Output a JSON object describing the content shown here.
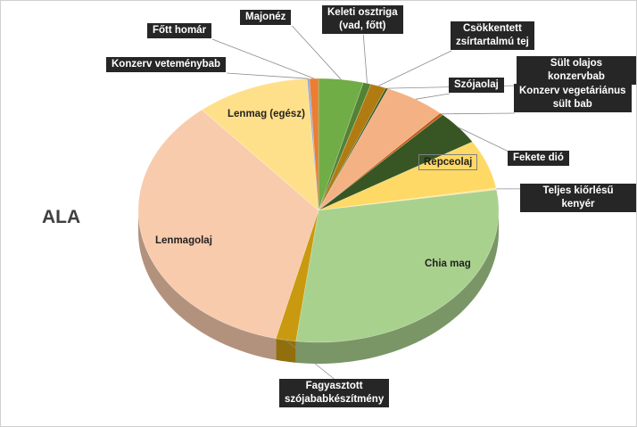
{
  "chart_data": {
    "type": "pie",
    "title": "ALA",
    "three_d": true,
    "slices": [
      {
        "label": "Majonéz",
        "value": 4.0,
        "color": "#70ad47"
      },
      {
        "label": "Keleti osztriga\n(vad, főtt)",
        "value": 0.7,
        "color": "#548235"
      },
      {
        "label": "Csökkentett\nzsírtartalmú tej",
        "value": 1.4,
        "color": "#b07c12"
      },
      {
        "label": "Sült olajos konzervbab",
        "value": 0.2,
        "color": "#375623"
      },
      {
        "label": "Szójaolaj",
        "value": 5.5,
        "color": "#f4b183"
      },
      {
        "label": "Konzerv vegetáriánus\nsült bab",
        "value": 0.3,
        "color": "#c55a11"
      },
      {
        "label": "Fekete dió",
        "value": 4.2,
        "color": "#375623"
      },
      {
        "label": "Repceolaj",
        "value": 6.0,
        "color": "#ffd966"
      },
      {
        "label": "Teljes kiőrlésű kenyér",
        "value": 0.2,
        "color": "#ffe699"
      },
      {
        "label": "Chia mag",
        "value": 29.5,
        "color": "#a9d18e"
      },
      {
        "label": "Fagyasztott\nszójababkészítmény",
        "value": 1.8,
        "color": "#c99a10"
      },
      {
        "label": "Lenmagolaj",
        "value": 35.0,
        "color": "#f8cbad"
      },
      {
        "label": "Lenmag (egész)",
        "value": 10.2,
        "color": "#ffe08a"
      },
      {
        "label": "Konzerv veteménybab",
        "value": 0.2,
        "color": "#8faadc"
      },
      {
        "label": "Főtt homár",
        "value": 0.8,
        "color": "#ed7d31"
      }
    ]
  }
}
